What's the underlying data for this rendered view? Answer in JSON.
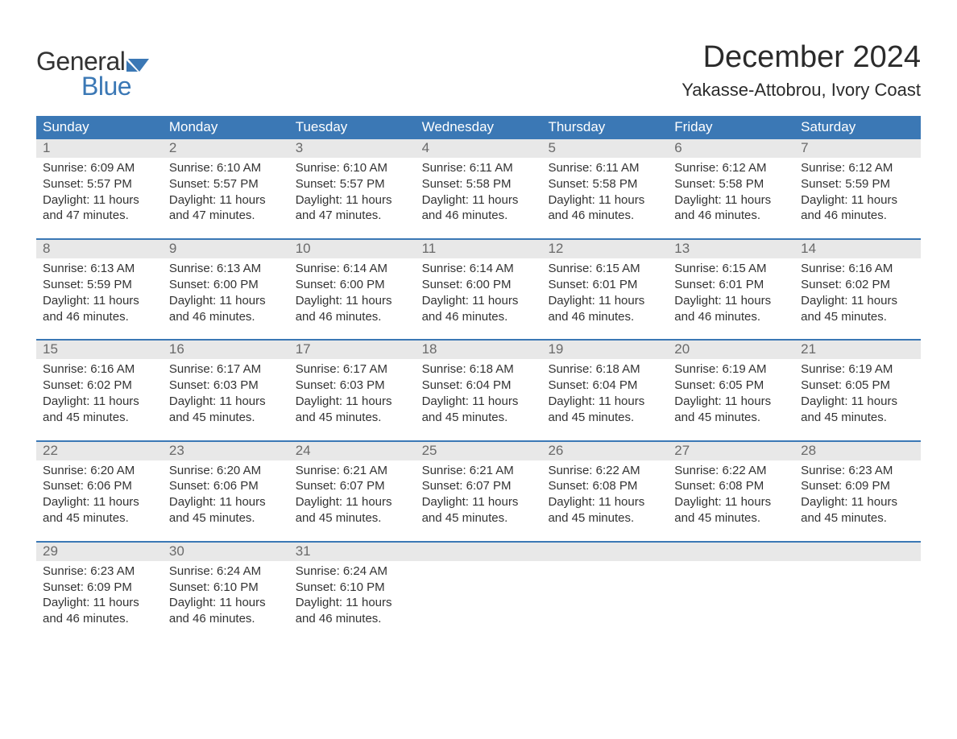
{
  "logo": {
    "line1": "General",
    "line2": "Blue",
    "flag_color": "#3b78b5"
  },
  "title": "December 2024",
  "location": "Yakasse-Attobrou, Ivory Coast",
  "colors": {
    "header_bg": "#3b78b5",
    "header_text": "#ffffff",
    "daynum_bg": "#e8e8e8",
    "daynum_text": "#6a6a6a",
    "body_text": "#333333",
    "page_bg": "#ffffff",
    "week_sep": "#3b78b5"
  },
  "days_of_week": [
    "Sunday",
    "Monday",
    "Tuesday",
    "Wednesday",
    "Thursday",
    "Friday",
    "Saturday"
  ],
  "weeks": [
    [
      {
        "n": "1",
        "sunrise": "Sunrise: 6:09 AM",
        "sunset": "Sunset: 5:57 PM",
        "d1": "Daylight: 11 hours",
        "d2": "and 47 minutes."
      },
      {
        "n": "2",
        "sunrise": "Sunrise: 6:10 AM",
        "sunset": "Sunset: 5:57 PM",
        "d1": "Daylight: 11 hours",
        "d2": "and 47 minutes."
      },
      {
        "n": "3",
        "sunrise": "Sunrise: 6:10 AM",
        "sunset": "Sunset: 5:57 PM",
        "d1": "Daylight: 11 hours",
        "d2": "and 47 minutes."
      },
      {
        "n": "4",
        "sunrise": "Sunrise: 6:11 AM",
        "sunset": "Sunset: 5:58 PM",
        "d1": "Daylight: 11 hours",
        "d2": "and 46 minutes."
      },
      {
        "n": "5",
        "sunrise": "Sunrise: 6:11 AM",
        "sunset": "Sunset: 5:58 PM",
        "d1": "Daylight: 11 hours",
        "d2": "and 46 minutes."
      },
      {
        "n": "6",
        "sunrise": "Sunrise: 6:12 AM",
        "sunset": "Sunset: 5:58 PM",
        "d1": "Daylight: 11 hours",
        "d2": "and 46 minutes."
      },
      {
        "n": "7",
        "sunrise": "Sunrise: 6:12 AM",
        "sunset": "Sunset: 5:59 PM",
        "d1": "Daylight: 11 hours",
        "d2": "and 46 minutes."
      }
    ],
    [
      {
        "n": "8",
        "sunrise": "Sunrise: 6:13 AM",
        "sunset": "Sunset: 5:59 PM",
        "d1": "Daylight: 11 hours",
        "d2": "and 46 minutes."
      },
      {
        "n": "9",
        "sunrise": "Sunrise: 6:13 AM",
        "sunset": "Sunset: 6:00 PM",
        "d1": "Daylight: 11 hours",
        "d2": "and 46 minutes."
      },
      {
        "n": "10",
        "sunrise": "Sunrise: 6:14 AM",
        "sunset": "Sunset: 6:00 PM",
        "d1": "Daylight: 11 hours",
        "d2": "and 46 minutes."
      },
      {
        "n": "11",
        "sunrise": "Sunrise: 6:14 AM",
        "sunset": "Sunset: 6:00 PM",
        "d1": "Daylight: 11 hours",
        "d2": "and 46 minutes."
      },
      {
        "n": "12",
        "sunrise": "Sunrise: 6:15 AM",
        "sunset": "Sunset: 6:01 PM",
        "d1": "Daylight: 11 hours",
        "d2": "and 46 minutes."
      },
      {
        "n": "13",
        "sunrise": "Sunrise: 6:15 AM",
        "sunset": "Sunset: 6:01 PM",
        "d1": "Daylight: 11 hours",
        "d2": "and 46 minutes."
      },
      {
        "n": "14",
        "sunrise": "Sunrise: 6:16 AM",
        "sunset": "Sunset: 6:02 PM",
        "d1": "Daylight: 11 hours",
        "d2": "and 45 minutes."
      }
    ],
    [
      {
        "n": "15",
        "sunrise": "Sunrise: 6:16 AM",
        "sunset": "Sunset: 6:02 PM",
        "d1": "Daylight: 11 hours",
        "d2": "and 45 minutes."
      },
      {
        "n": "16",
        "sunrise": "Sunrise: 6:17 AM",
        "sunset": "Sunset: 6:03 PM",
        "d1": "Daylight: 11 hours",
        "d2": "and 45 minutes."
      },
      {
        "n": "17",
        "sunrise": "Sunrise: 6:17 AM",
        "sunset": "Sunset: 6:03 PM",
        "d1": "Daylight: 11 hours",
        "d2": "and 45 minutes."
      },
      {
        "n": "18",
        "sunrise": "Sunrise: 6:18 AM",
        "sunset": "Sunset: 6:04 PM",
        "d1": "Daylight: 11 hours",
        "d2": "and 45 minutes."
      },
      {
        "n": "19",
        "sunrise": "Sunrise: 6:18 AM",
        "sunset": "Sunset: 6:04 PM",
        "d1": "Daylight: 11 hours",
        "d2": "and 45 minutes."
      },
      {
        "n": "20",
        "sunrise": "Sunrise: 6:19 AM",
        "sunset": "Sunset: 6:05 PM",
        "d1": "Daylight: 11 hours",
        "d2": "and 45 minutes."
      },
      {
        "n": "21",
        "sunrise": "Sunrise: 6:19 AM",
        "sunset": "Sunset: 6:05 PM",
        "d1": "Daylight: 11 hours",
        "d2": "and 45 minutes."
      }
    ],
    [
      {
        "n": "22",
        "sunrise": "Sunrise: 6:20 AM",
        "sunset": "Sunset: 6:06 PM",
        "d1": "Daylight: 11 hours",
        "d2": "and 45 minutes."
      },
      {
        "n": "23",
        "sunrise": "Sunrise: 6:20 AM",
        "sunset": "Sunset: 6:06 PM",
        "d1": "Daylight: 11 hours",
        "d2": "and 45 minutes."
      },
      {
        "n": "24",
        "sunrise": "Sunrise: 6:21 AM",
        "sunset": "Sunset: 6:07 PM",
        "d1": "Daylight: 11 hours",
        "d2": "and 45 minutes."
      },
      {
        "n": "25",
        "sunrise": "Sunrise: 6:21 AM",
        "sunset": "Sunset: 6:07 PM",
        "d1": "Daylight: 11 hours",
        "d2": "and 45 minutes."
      },
      {
        "n": "26",
        "sunrise": "Sunrise: 6:22 AM",
        "sunset": "Sunset: 6:08 PM",
        "d1": "Daylight: 11 hours",
        "d2": "and 45 minutes."
      },
      {
        "n": "27",
        "sunrise": "Sunrise: 6:22 AM",
        "sunset": "Sunset: 6:08 PM",
        "d1": "Daylight: 11 hours",
        "d2": "and 45 minutes."
      },
      {
        "n": "28",
        "sunrise": "Sunrise: 6:23 AM",
        "sunset": "Sunset: 6:09 PM",
        "d1": "Daylight: 11 hours",
        "d2": "and 45 minutes."
      }
    ],
    [
      {
        "n": "29",
        "sunrise": "Sunrise: 6:23 AM",
        "sunset": "Sunset: 6:09 PM",
        "d1": "Daylight: 11 hours",
        "d2": "and 46 minutes."
      },
      {
        "n": "30",
        "sunrise": "Sunrise: 6:24 AM",
        "sunset": "Sunset: 6:10 PM",
        "d1": "Daylight: 11 hours",
        "d2": "and 46 minutes."
      },
      {
        "n": "31",
        "sunrise": "Sunrise: 6:24 AM",
        "sunset": "Sunset: 6:10 PM",
        "d1": "Daylight: 11 hours",
        "d2": "and 46 minutes."
      },
      {
        "n": "",
        "sunrise": "",
        "sunset": "",
        "d1": "",
        "d2": ""
      },
      {
        "n": "",
        "sunrise": "",
        "sunset": "",
        "d1": "",
        "d2": ""
      },
      {
        "n": "",
        "sunrise": "",
        "sunset": "",
        "d1": "",
        "d2": ""
      },
      {
        "n": "",
        "sunrise": "",
        "sunset": "",
        "d1": "",
        "d2": ""
      }
    ]
  ]
}
